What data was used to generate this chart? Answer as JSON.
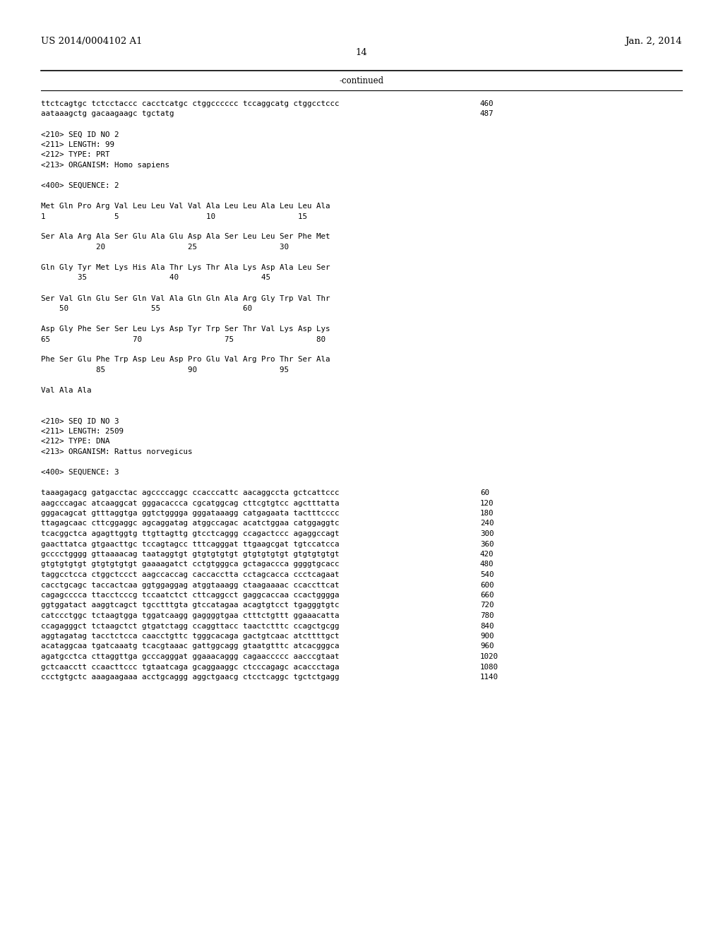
{
  "bg_color": "#ffffff",
  "header_left": "US 2014/0004102 A1",
  "header_right": "Jan. 2, 2014",
  "page_number": "14",
  "continued_label": "-continued",
  "lines": [
    {
      "text": "ttctcagtgc tctcctaccc cacctcatgc ctggcccccc tccaggcatg ctggcctccc",
      "num": "460"
    },
    {
      "text": "aataaagctg gacaagaagc tgctatg",
      "num": "487"
    },
    {
      "text": ""
    },
    {
      "text": "<210> SEQ ID NO 2"
    },
    {
      "text": "<211> LENGTH: 99"
    },
    {
      "text": "<212> TYPE: PRT"
    },
    {
      "text": "<213> ORGANISM: Homo sapiens"
    },
    {
      "text": ""
    },
    {
      "text": "<400> SEQUENCE: 2"
    },
    {
      "text": ""
    },
    {
      "text": "Met Gln Pro Arg Val Leu Leu Val Val Ala Leu Leu Ala Leu Leu Ala"
    },
    {
      "text": "1               5                   10                  15"
    },
    {
      "text": ""
    },
    {
      "text": "Ser Ala Arg Ala Ser Glu Ala Glu Asp Ala Ser Leu Leu Ser Phe Met"
    },
    {
      "text": "            20                  25                  30"
    },
    {
      "text": ""
    },
    {
      "text": "Gln Gly Tyr Met Lys His Ala Thr Lys Thr Ala Lys Asp Ala Leu Ser"
    },
    {
      "text": "        35                  40                  45"
    },
    {
      "text": ""
    },
    {
      "text": "Ser Val Gln Glu Ser Gln Val Ala Gln Gln Ala Arg Gly Trp Val Thr"
    },
    {
      "text": "    50                  55                  60"
    },
    {
      "text": ""
    },
    {
      "text": "Asp Gly Phe Ser Ser Leu Lys Asp Tyr Trp Ser Thr Val Lys Asp Lys"
    },
    {
      "text": "65                  70                  75                  80"
    },
    {
      "text": ""
    },
    {
      "text": "Phe Ser Glu Phe Trp Asp Leu Asp Pro Glu Val Arg Pro Thr Ser Ala"
    },
    {
      "text": "            85                  90                  95"
    },
    {
      "text": ""
    },
    {
      "text": "Val Ala Ala"
    },
    {
      "text": ""
    },
    {
      "text": ""
    },
    {
      "text": "<210> SEQ ID NO 3"
    },
    {
      "text": "<211> LENGTH: 2509"
    },
    {
      "text": "<212> TYPE: DNA"
    },
    {
      "text": "<213> ORGANISM: Rattus norvegicus"
    },
    {
      "text": ""
    },
    {
      "text": "<400> SEQUENCE: 3"
    },
    {
      "text": ""
    },
    {
      "text": "taaagagacg gatgacctac agccccaggc ccacccattc aacaggccta gctcattccc",
      "num": "60"
    },
    {
      "text": "aagcccagac atcaaggcat gggacaccca cgcatggcag cttcgtgtcc agctttatta",
      "num": "120"
    },
    {
      "text": "gggacagcat gtttaggtga ggtctgggga gggataaagg catgagaata tactttcccc",
      "num": "180"
    },
    {
      "text": "ttagagcaac cttcggaggc agcaggatag atggccagac acatctggaa catggaggtc",
      "num": "240"
    },
    {
      "text": "tcacggctca agagttggtg ttgttagttg gtcctcaggg ccagactccc agaggccagt",
      "num": "300"
    },
    {
      "text": "gaacttatca gtgaacttgc tccagtagcc tttcagggat ttgaagcgat tgtccatcca",
      "num": "360"
    },
    {
      "text": "gcccctgggg gttaaaacag taataggtgt gtgtgtgtgt gtgtgtgtgt gtgtgtgtgt",
      "num": "420"
    },
    {
      "text": "gtgtgtgtgt gtgtgtgtgt gaaaagatct cctgtgggca gctagaccca ggggtgcacc",
      "num": "480"
    },
    {
      "text": "taggcctcca ctggctccct aagccaccag caccacctta cctagcacca ccctcagaat",
      "num": "540"
    },
    {
      "text": "cacctgcagc taccactcaa ggtggaggag atggtaaagg ctaagaaaac ccaccttcat",
      "num": "600"
    },
    {
      "text": "cagagcccca ttacctcccg tccaatctct cttcaggcct gaggcaccaa ccactgggga",
      "num": "660"
    },
    {
      "text": "ggtggatact aaggtcagct tgcctttgta gtccatagaa acagtgtcct tgagggtgtc",
      "num": "720"
    },
    {
      "text": "catccctggc tctaagtgga tggatcaagg gaggggtgaa ctttctgttt ggaaacatta",
      "num": "780"
    },
    {
      "text": "ccagagggct tctaagctct gtgatctagg ccaggttacc taactctttc ccagctgcgg",
      "num": "840"
    },
    {
      "text": "aggtagatag tacctctcca caacctgttc tgggcacaga gactgtcaac atcttttgct",
      "num": "900"
    },
    {
      "text": "acataggcaa tgatcaaatg tcacgtaaac gattggcagg gtaatgtttc atcacgggca",
      "num": "960"
    },
    {
      "text": "agatgcctca cttaggttga gcccagggat ggaaacaggg cagaaccccc aacccgtaat",
      "num": "1020"
    },
    {
      "text": "gctcaacctt ccaacttccc tgtaatcaga gcaggaaggc ctcccagagc acaccctaga",
      "num": "1080"
    },
    {
      "text": "ccctgtgctc aaagaagaaa acctgcaggg aggctgaacg ctcctcaggc tgctctgagg",
      "num": "1140"
    }
  ]
}
